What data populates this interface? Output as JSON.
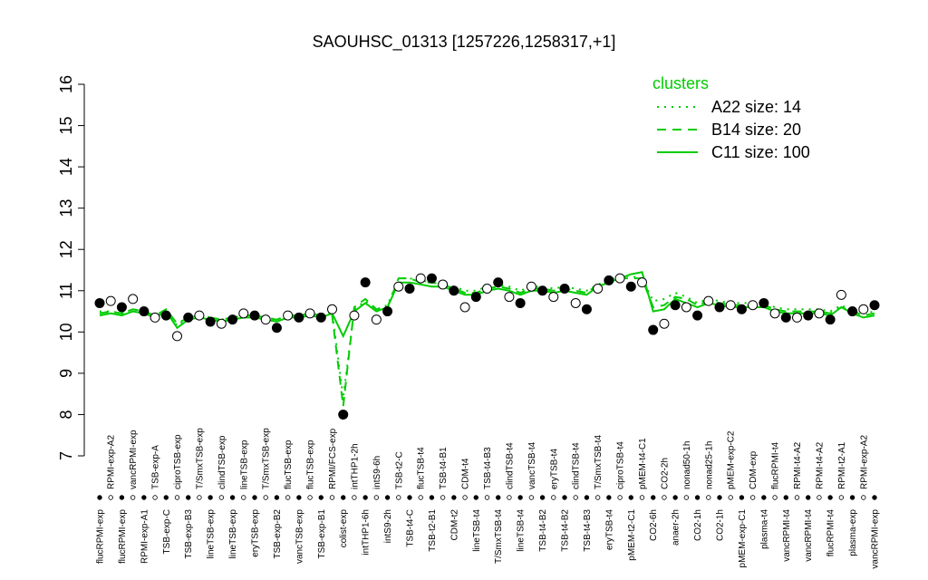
{
  "chart_data": {
    "type": "line",
    "title": "SAOUHSC_01313 [1257226,1258317,+1]",
    "legend_title": "clusters",
    "legend_position": "top-right",
    "point_color": "#000000",
    "categories": [
      "flucRPMI-exp",
      "RPMI-exp-A2",
      "flucRPMI-exp",
      "vancRPMI-exp",
      "RPMI-exp-A1",
      "TSB-exp-A",
      "TSB-exp-C",
      "ciproTSB-exp",
      "TSB-exp-B3",
      "T/SmxTSB-exp",
      "lineTSB-exp",
      "clindTSB-exp",
      "lineTSB-exp",
      "lineTSB-exp",
      "eryTSB-exp",
      "T/SmxTSB-exp",
      "TSB-exp-B2",
      "flucTSB-exp",
      "vancTSB-exp",
      "flucTSB-exp",
      "TSB-exp-B1",
      "RPMI/FCS-exp",
      "colist-exp",
      "intTHP1-2h",
      "intTHP1-6h",
      "intS9-6h",
      "intS9-2h",
      "TSB-t2-C",
      "TSB-t4-C",
      "flucTSB-t4",
      "TSB-t2-B1",
      "TSB-t4-B1",
      "CDM-t2",
      "CDM-t4",
      "lineTSB-t4",
      "TSB-t4-B3",
      "T/SmxTSB-t4",
      "clindTSB-t4",
      "lineTSB-t4",
      "vancTSB-t4",
      "TSB-t4-B2",
      "eryTSB-t4",
      "TSB-t4-B2",
      "clindTSB-t4",
      "TSB-t4-B3",
      "T/SmxTSB-t4",
      "eryTSB-t4",
      "ciproTSB-t4",
      "pMEM-t2-C1",
      "pMEM-t4-C1",
      "CO2-6h",
      "CO2-2h",
      "anaer-2h",
      "nonad50-1h",
      "CO2-1h",
      "nonad25-1h",
      "CO2-1h",
      "pMEM-exp-C2",
      "pMEM-exp-C1",
      "CDM-exp",
      "plasma-t4",
      "flucRPMI-t4",
      "vancRPMI-t4",
      "RPMI-t4-A2",
      "vancRPMI-t4",
      "RPMI-t4-A2",
      "flucRPMI-t4",
      "RPMI-t2-A1",
      "plasma-exp",
      "RPMI-exp-A2",
      "vancRPMI-exp"
    ],
    "values": [
      10.7,
      10.75,
      10.6,
      10.8,
      10.5,
      10.35,
      10.4,
      9.9,
      10.35,
      10.4,
      10.25,
      10.2,
      10.3,
      10.45,
      10.4,
      10.3,
      10.1,
      10.4,
      10.35,
      10.45,
      10.35,
      10.55,
      8.0,
      10.4,
      11.2,
      10.3,
      10.5,
      11.1,
      11.05,
      11.3,
      11.3,
      11.15,
      11.0,
      10.6,
      10.85,
      11.05,
      11.2,
      10.85,
      10.7,
      11.1,
      11.0,
      10.85,
      11.05,
      10.7,
      10.55,
      11.05,
      11.25,
      11.3,
      11.1,
      11.2,
      10.05,
      10.2,
      10.65,
      10.6,
      10.4,
      10.75,
      10.6,
      10.65,
      10.55,
      10.65,
      10.7,
      10.45,
      10.35,
      10.35,
      10.4,
      10.45,
      10.3,
      10.9,
      10.5,
      10.55,
      10.65
    ],
    "series": [
      {
        "name": "A22 size: 14",
        "color": "#00cc00",
        "dash": "dotted",
        "values": [
          10.5,
          10.5,
          10.45,
          10.55,
          10.5,
          10.4,
          10.55,
          10.15,
          10.35,
          10.4,
          10.35,
          10.3,
          10.35,
          10.4,
          10.4,
          10.35,
          10.3,
          10.4,
          10.4,
          10.45,
          10.4,
          10.5,
          8.4,
          10.55,
          10.75,
          10.55,
          10.65,
          11.3,
          11.3,
          11.25,
          11.2,
          11.2,
          11.1,
          11.0,
          11.0,
          11.1,
          11.15,
          11.1,
          11.0,
          11.1,
          11.1,
          11.05,
          11.1,
          11.05,
          11.0,
          11.15,
          11.25,
          11.35,
          11.35,
          11.3,
          10.75,
          10.8,
          10.95,
          10.85,
          10.7,
          10.8,
          10.75,
          10.7,
          10.7,
          10.7,
          10.7,
          10.6,
          10.55,
          10.55,
          10.55,
          10.55,
          10.5,
          10.65,
          10.5,
          10.45,
          10.5
        ]
      },
      {
        "name": "B14 size: 20",
        "color": "#00cc00",
        "dash": "dashed",
        "values": [
          10.45,
          10.5,
          10.45,
          10.55,
          10.5,
          10.4,
          10.55,
          10.2,
          10.35,
          10.4,
          10.35,
          10.3,
          10.35,
          10.4,
          10.4,
          10.35,
          10.3,
          10.4,
          10.4,
          10.45,
          10.4,
          10.4,
          8.2,
          10.6,
          10.8,
          10.55,
          10.6,
          11.3,
          11.3,
          11.2,
          11.2,
          11.15,
          11.05,
          10.95,
          10.95,
          11.05,
          11.1,
          11.05,
          10.95,
          11.05,
          11.05,
          11.0,
          11.05,
          11.0,
          10.95,
          11.15,
          11.2,
          11.3,
          11.3,
          11.3,
          10.6,
          10.65,
          10.85,
          10.8,
          10.65,
          10.75,
          10.7,
          10.65,
          10.65,
          10.65,
          10.65,
          10.55,
          10.5,
          10.5,
          10.5,
          10.5,
          10.45,
          10.6,
          10.5,
          10.4,
          10.45
        ]
      },
      {
        "name": "C11 size: 100",
        "color": "#00cc00",
        "dash": "solid",
        "values": [
          10.4,
          10.45,
          10.4,
          10.5,
          10.45,
          10.35,
          10.5,
          10.1,
          10.3,
          10.35,
          10.3,
          10.25,
          10.3,
          10.35,
          10.35,
          10.3,
          10.25,
          10.35,
          10.35,
          10.4,
          10.35,
          10.45,
          9.9,
          10.5,
          10.7,
          10.5,
          10.6,
          11.2,
          11.2,
          11.15,
          11.1,
          11.1,
          11.0,
          10.9,
          10.9,
          11.0,
          11.05,
          11.0,
          10.9,
          11.0,
          11.0,
          10.95,
          11.0,
          10.95,
          10.9,
          11.1,
          11.2,
          11.3,
          11.4,
          11.45,
          10.5,
          10.55,
          10.8,
          10.7,
          10.6,
          10.7,
          10.65,
          10.6,
          10.6,
          10.6,
          10.6,
          10.5,
          10.45,
          10.45,
          10.45,
          10.45,
          10.4,
          10.6,
          10.45,
          10.35,
          10.4
        ]
      }
    ],
    "ylim": [
      7,
      16
    ],
    "yticks": [
      7,
      8,
      9,
      10,
      11,
      12,
      13,
      14,
      15,
      16
    ],
    "grid": false
  }
}
